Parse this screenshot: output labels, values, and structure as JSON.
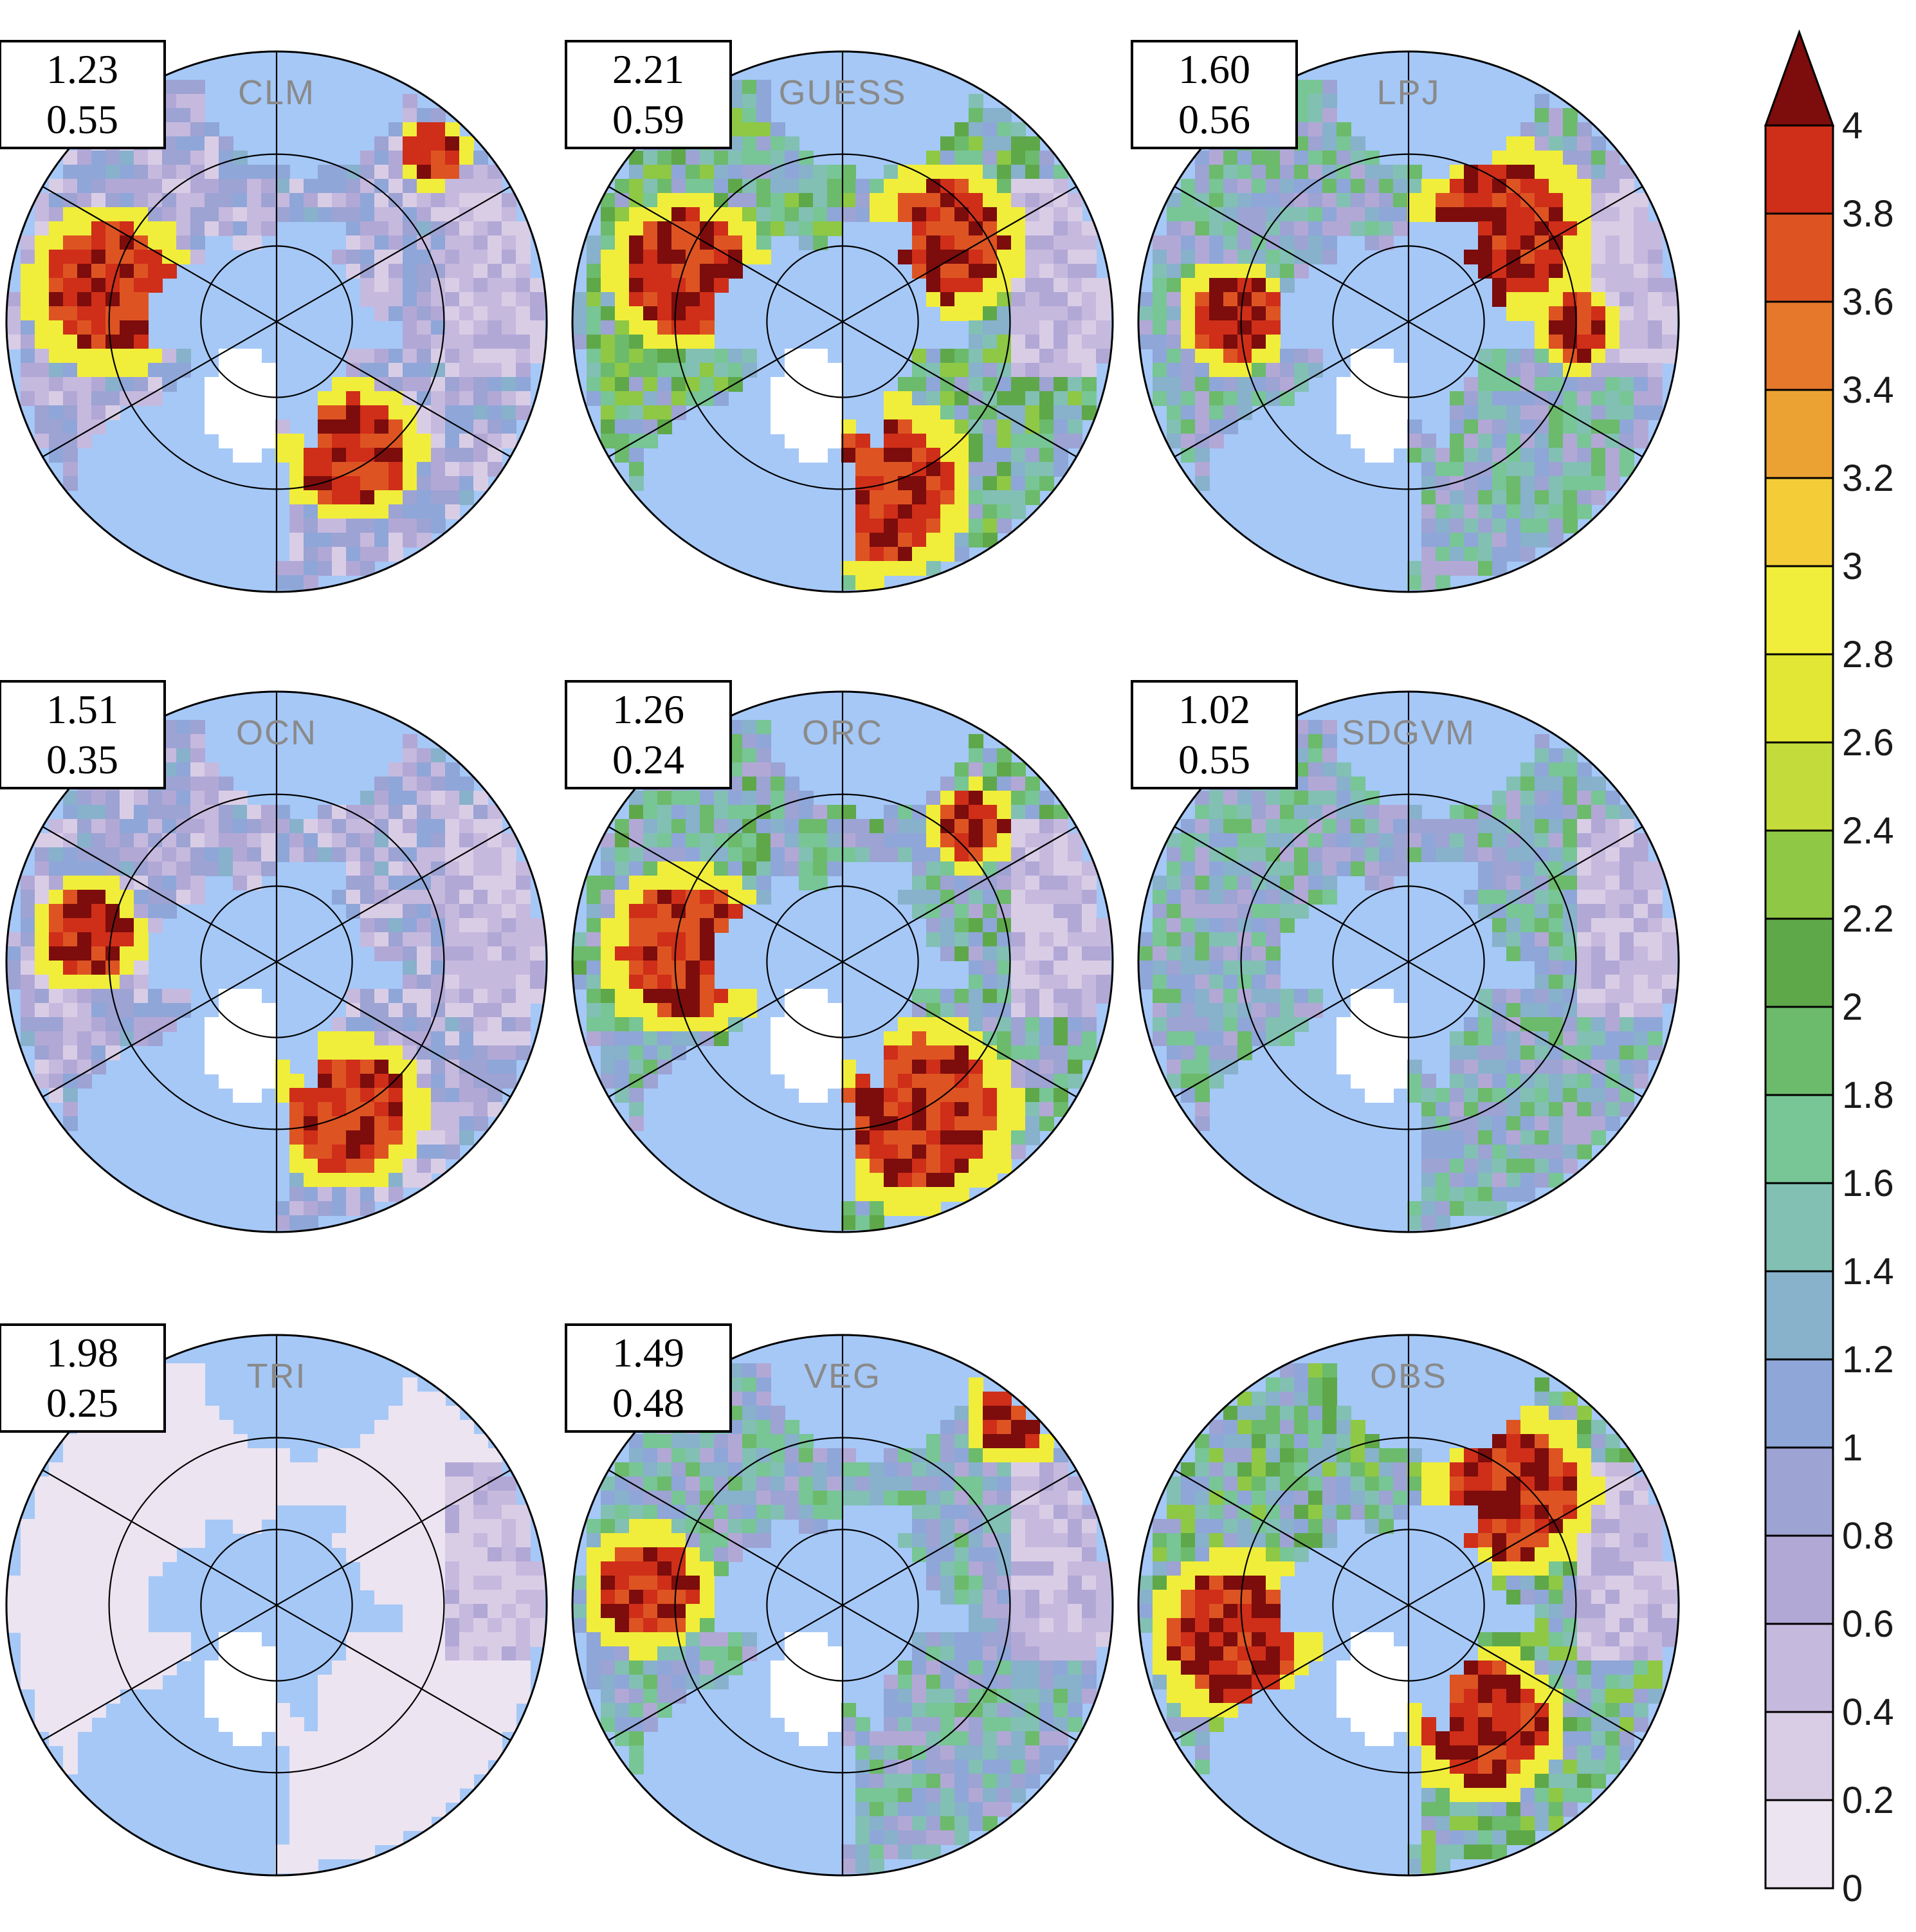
{
  "panels": [
    {
      "name": "CLM",
      "stat1": "1.23",
      "stat2": "0.55",
      "mean_level": 1.6,
      "hot": [
        [
          -0.62,
          -0.12,
          0.24
        ],
        [
          0.28,
          0.48,
          0.2
        ],
        [
          0.58,
          -0.62,
          0.1
        ]
      ]
    },
    {
      "name": "GUESS",
      "stat1": "2.21",
      "stat2": "0.59",
      "mean_level": 2.6,
      "hot": [
        [
          -0.58,
          -0.18,
          0.22
        ],
        [
          0.14,
          0.62,
          0.26
        ],
        [
          0.38,
          -0.3,
          0.22
        ]
      ]
    },
    {
      "name": "LPJ",
      "stat1": "1.60",
      "stat2": "0.56",
      "mean_level": 2.2,
      "hot": [
        [
          -0.64,
          -0.02,
          0.16
        ],
        [
          0.34,
          -0.34,
          0.26
        ],
        [
          0.62,
          0.02,
          0.12
        ]
      ]
    },
    {
      "name": "OCN",
      "stat1": "1.51",
      "stat2": "0.35",
      "mean_level": 1.6,
      "hot": [
        [
          -0.7,
          -0.1,
          0.16
        ],
        [
          0.26,
          0.56,
          0.22
        ]
      ]
    },
    {
      "name": "ORC",
      "stat1": "1.26",
      "stat2": "0.24",
      "mean_level": 2.4,
      "hot": [
        [
          -0.58,
          -0.04,
          0.24
        ],
        [
          0.28,
          0.56,
          0.28
        ],
        [
          0.48,
          -0.5,
          0.12
        ]
      ]
    },
    {
      "name": "SDGVM",
      "stat1": "1.02",
      "stat2": "0.55",
      "mean_level": 2.2,
      "hot": []
    },
    {
      "name": "TRI",
      "stat1": "1.98",
      "stat2": "0.25",
      "mean_level": 0.6,
      "hot": []
    },
    {
      "name": "VEG",
      "stat1": "1.49",
      "stat2": "0.48",
      "mean_level": 2.2,
      "hot": [
        [
          -0.72,
          -0.06,
          0.18
        ],
        [
          0.64,
          -0.7,
          0.14
        ]
      ]
    },
    {
      "name": "OBS",
      "stat1": "",
      "stat2": "",
      "mean_level": 2.6,
      "hot": [
        [
          -0.64,
          0.12,
          0.24
        ],
        [
          0.38,
          -0.42,
          0.24
        ],
        [
          0.28,
          0.44,
          0.22
        ]
      ]
    }
  ],
  "colorbar": {
    "levels": [
      "0",
      "0.2",
      "0.4",
      "0.6",
      "0.8",
      "1",
      "1.2",
      "1.4",
      "1.6",
      "1.8",
      "2",
      "2.2",
      "2.4",
      "2.6",
      "2.8",
      "3",
      "3.2",
      "3.4",
      "3.6",
      "3.8",
      "4"
    ],
    "colors": [
      "#ece4f0",
      "#d9cde6",
      "#c6b9de",
      "#b2a8d6",
      "#9da3d3",
      "#8fa6d8",
      "#88b1cc",
      "#82c0b4",
      "#78c596",
      "#6cba6b",
      "#5ea84a",
      "#8ec845",
      "#c3dc3c",
      "#e2e634",
      "#f0ee3a",
      "#f3cc37",
      "#eca233",
      "#e6782b",
      "#dd5422",
      "#cf2e19",
      "#b01612",
      "#7d0c0c"
    ]
  },
  "ocean_color": "#a5c8f7",
  "landmask_color": "#ffffff"
}
